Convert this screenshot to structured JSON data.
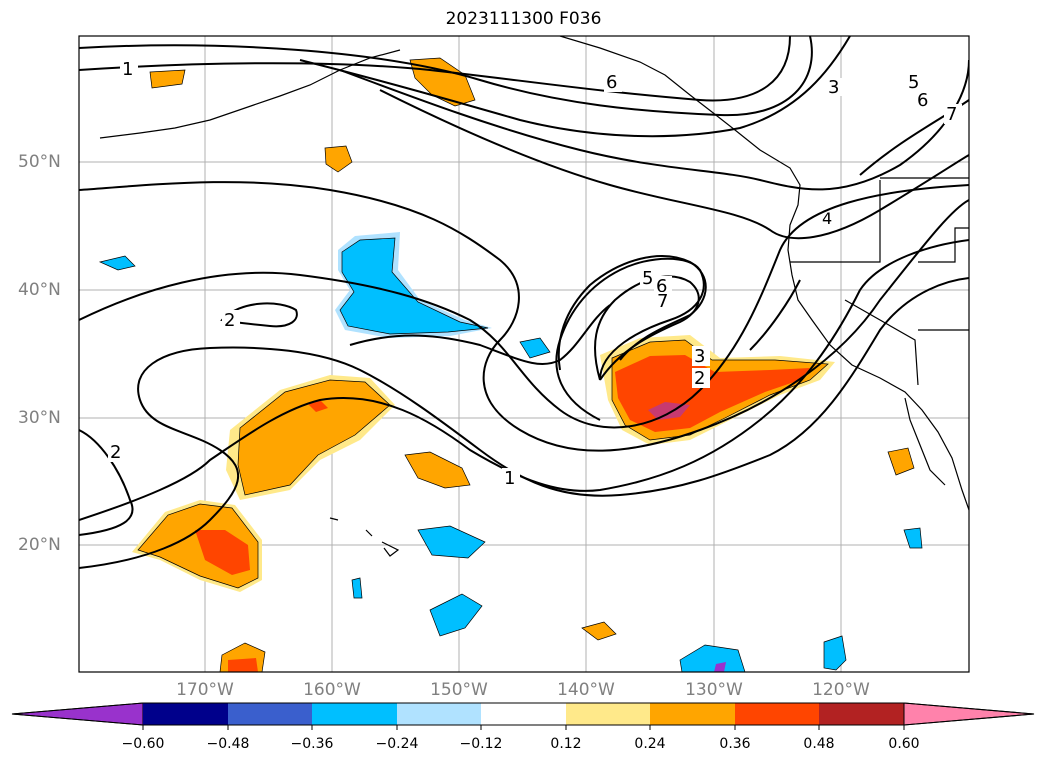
{
  "title": "2023111300 F036",
  "lon_labels": [
    "170°W",
    "160°W",
    "150°W",
    "140°W",
    "130°W",
    "120°W"
  ],
  "lat_labels": [
    "50°N",
    "40°N",
    "30°N",
    "20°N"
  ],
  "contour_labels": [
    "1",
    "6",
    "3",
    "5",
    "6",
    "7",
    "4",
    "5",
    "6",
    "7",
    "2",
    "3",
    "2",
    "2",
    "1"
  ],
  "colorbar": {
    "ticks": [
      "−0.60",
      "−0.48",
      "−0.36",
      "−0.24",
      "−0.12",
      "0.12",
      "0.24",
      "0.36",
      "0.48",
      "0.60"
    ],
    "colors": [
      "#9932cc",
      "#00008b",
      "#3a5fcd",
      "#00bfff",
      "#b0e2ff",
      "#ffffff",
      "#ffe98a",
      "#ffa500",
      "#ff4500",
      "#b22222",
      "#ff82ab"
    ]
  }
}
